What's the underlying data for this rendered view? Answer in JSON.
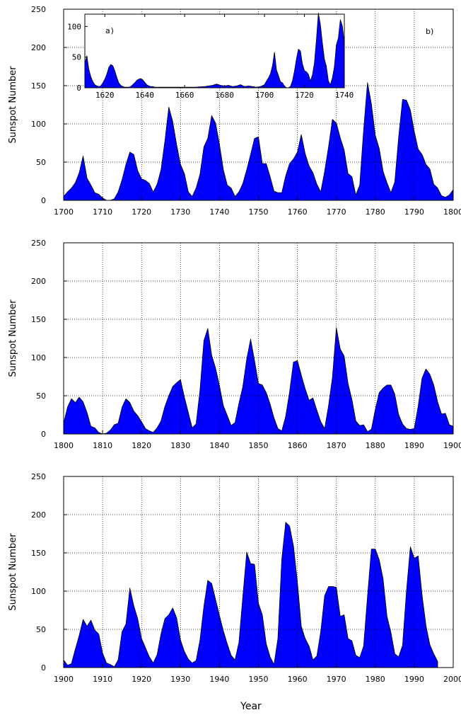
{
  "figure": {
    "xlabel": "Year"
  },
  "chart_data": [
    {
      "type": "area",
      "panel_label": "b)",
      "ylabel": "Sunspot Number",
      "xlim": [
        1700,
        1800
      ],
      "ylim": [
        0,
        250
      ],
      "xticks": [
        1700,
        1710,
        1720,
        1730,
        1740,
        1750,
        1760,
        1770,
        1780,
        1790,
        1800
      ],
      "xtick_labels": [
        "1700",
        "1710",
        "1720",
        "1730",
        "1740",
        "1750",
        "1760",
        "1770",
        "1780",
        "1790",
        "1800"
      ],
      "yticks": [
        0,
        50,
        100,
        150,
        200,
        250
      ],
      "grid": true,
      "fill_color": "#0000ff",
      "x": [
        1700,
        1701,
        1702,
        1703,
        1704,
        1705,
        1706,
        1707,
        1708,
        1709,
        1710,
        1711,
        1712,
        1713,
        1714,
        1715,
        1716,
        1717,
        1718,
        1719,
        1720,
        1721,
        1722,
        1723,
        1724,
        1725,
        1726,
        1727,
        1728,
        1729,
        1730,
        1731,
        1732,
        1733,
        1734,
        1735,
        1736,
        1737,
        1738,
        1739,
        1740,
        1741,
        1742,
        1743,
        1744,
        1745,
        1746,
        1747,
        1748,
        1749,
        1750,
        1751,
        1752,
        1753,
        1754,
        1755,
        1756,
        1757,
        1758,
        1759,
        1760,
        1761,
        1762,
        1763,
        1764,
        1765,
        1766,
        1767,
        1768,
        1769,
        1770,
        1771,
        1772,
        1773,
        1774,
        1775,
        1776,
        1777,
        1778,
        1779,
        1780,
        1781,
        1782,
        1783,
        1784,
        1785,
        1786,
        1787,
        1788,
        1789,
        1790,
        1791,
        1792,
        1793,
        1794,
        1795,
        1796,
        1797,
        1798,
        1799,
        1800
      ],
      "y": [
        5,
        11,
        16,
        23,
        36,
        58,
        29,
        20,
        10,
        8,
        3,
        0,
        0,
        2,
        11,
        27,
        47,
        63,
        60,
        39,
        28,
        26,
        22,
        11,
        21,
        40,
        78,
        122,
        103,
        73,
        47,
        35,
        11,
        5,
        16,
        34,
        70,
        81,
        111,
        101,
        73,
        40,
        20,
        16,
        5,
        11,
        22,
        40,
        60,
        81,
        83,
        48,
        48,
        31,
        12,
        10,
        10,
        32,
        48,
        54,
        63,
        86,
        61,
        45,
        36,
        21,
        11,
        38,
        70,
        106,
        101,
        82,
        66,
        35,
        31,
        7,
        20,
        92,
        154,
        126,
        85,
        68,
        38,
        23,
        10,
        24,
        83,
        132,
        131,
        118,
        90,
        67,
        60,
        47,
        41,
        21,
        16,
        6,
        4,
        7,
        14
      ]
    },
    {
      "type": "area",
      "panel_label": "a)",
      "inset": true,
      "xlim": [
        1610,
        1740
      ],
      "ylim": [
        0,
        120
      ],
      "xticks": [
        1620,
        1640,
        1660,
        1680,
        1700,
        1720,
        1740
      ],
      "xtick_labels": [
        "1620",
        "1640",
        "1660",
        "1680",
        "1700",
        "1720",
        "1740"
      ],
      "yticks": [
        0,
        50,
        100
      ],
      "fill_color": "#0000ff",
      "x": [
        1610,
        1611,
        1612,
        1613,
        1614,
        1615,
        1616,
        1617,
        1618,
        1619,
        1620,
        1621,
        1622,
        1623,
        1624,
        1625,
        1626,
        1627,
        1628,
        1629,
        1630,
        1631,
        1632,
        1633,
        1634,
        1635,
        1636,
        1637,
        1638,
        1639,
        1640,
        1641,
        1642,
        1643,
        1644,
        1645,
        1646,
        1647,
        1648,
        1649,
        1650,
        1655,
        1660,
        1665,
        1670,
        1672,
        1674,
        1676,
        1678,
        1680,
        1682,
        1684,
        1686,
        1688,
        1690,
        1692,
        1694,
        1696,
        1698,
        1700,
        1701,
        1702,
        1703,
        1704,
        1705,
        1706,
        1707,
        1708,
        1709,
        1710,
        1711,
        1712,
        1713,
        1714,
        1715,
        1716,
        1717,
        1718,
        1719,
        1720,
        1721,
        1722,
        1723,
        1724,
        1725,
        1726,
        1727,
        1728,
        1729,
        1730,
        1731,
        1732,
        1733,
        1734,
        1735,
        1736,
        1737,
        1738,
        1739,
        1740
      ],
      "y": [
        40,
        52,
        30,
        18,
        10,
        5,
        3,
        2,
        3,
        8,
        14,
        22,
        33,
        38,
        36,
        28,
        17,
        8,
        4,
        2,
        1,
        1,
        1,
        2,
        5,
        8,
        12,
        14,
        15,
        13,
        9,
        5,
        3,
        2,
        2,
        1,
        1,
        1,
        1,
        1,
        1,
        1,
        1,
        1,
        2,
        3,
        4,
        6,
        4,
        3,
        4,
        2,
        3,
        5,
        2,
        3,
        2,
        1,
        2,
        5,
        11,
        16,
        23,
        36,
        58,
        29,
        20,
        10,
        8,
        3,
        0,
        0,
        2,
        11,
        27,
        47,
        63,
        60,
        39,
        28,
        26,
        22,
        11,
        21,
        40,
        78,
        122,
        103,
        73,
        47,
        35,
        11,
        5,
        16,
        34,
        70,
        81,
        111,
        101,
        73
      ]
    },
    {
      "type": "area",
      "ylabel": "Sunspot Number",
      "xlim": [
        1800,
        1900
      ],
      "ylim": [
        0,
        250
      ],
      "xticks": [
        1800,
        1810,
        1820,
        1830,
        1840,
        1850,
        1860,
        1870,
        1880,
        1890,
        1900
      ],
      "xtick_labels": [
        "1800",
        "1810",
        "1820",
        "1830",
        "1840",
        "1850",
        "1860",
        "1870",
        "1880",
        "1890",
        "1900"
      ],
      "yticks": [
        0,
        50,
        100,
        150,
        200,
        250
      ],
      "grid": true,
      "fill_color": "#0000ff",
      "x": [
        1800,
        1801,
        1802,
        1803,
        1804,
        1805,
        1806,
        1807,
        1808,
        1809,
        1810,
        1811,
        1812,
        1813,
        1814,
        1815,
        1816,
        1817,
        1818,
        1819,
        1820,
        1821,
        1822,
        1823,
        1824,
        1825,
        1826,
        1827,
        1828,
        1829,
        1830,
        1831,
        1832,
        1833,
        1834,
        1835,
        1836,
        1837,
        1838,
        1839,
        1840,
        1841,
        1842,
        1843,
        1844,
        1845,
        1846,
        1847,
        1848,
        1849,
        1850,
        1851,
        1852,
        1853,
        1854,
        1855,
        1856,
        1857,
        1858,
        1859,
        1860,
        1861,
        1862,
        1863,
        1864,
        1865,
        1866,
        1867,
        1868,
        1869,
        1870,
        1871,
        1872,
        1873,
        1874,
        1875,
        1876,
        1877,
        1878,
        1879,
        1880,
        1881,
        1882,
        1883,
        1884,
        1885,
        1886,
        1887,
        1888,
        1889,
        1890,
        1891,
        1892,
        1893,
        1894,
        1895,
        1896,
        1897,
        1898,
        1899,
        1900
      ],
      "y": [
        14,
        35,
        46,
        41,
        48,
        42,
        28,
        10,
        8,
        2,
        0,
        1,
        5,
        12,
        14,
        35,
        46,
        41,
        30,
        24,
        16,
        7,
        4,
        2,
        8,
        17,
        36,
        50,
        62,
        67,
        71,
        48,
        28,
        8,
        13,
        57,
        122,
        138,
        103,
        86,
        63,
        37,
        24,
        11,
        15,
        40,
        62,
        98,
        124,
        96,
        66,
        64,
        54,
        39,
        21,
        7,
        4,
        23,
        55,
        94,
        96,
        77,
        59,
        44,
        47,
        31,
        16,
        7,
        37,
        74,
        139,
        111,
        102,
        66,
        45,
        17,
        11,
        12,
        3,
        6,
        32,
        54,
        60,
        64,
        64,
        52,
        25,
        13,
        7,
        6,
        7,
        36,
        73,
        85,
        78,
        64,
        42,
        26,
        27,
        12,
        10
      ]
    },
    {
      "type": "area",
      "ylabel": "Sunspot Number",
      "xlim": [
        1900,
        2000
      ],
      "ylim": [
        0,
        250
      ],
      "xticks": [
        1900,
        1910,
        1920,
        1930,
        1940,
        1950,
        1960,
        1970,
        1980,
        1990,
        2000
      ],
      "xtick_labels": [
        "1900",
        "1910",
        "1920",
        "1930",
        "1940",
        "1950",
        "1960",
        "1970",
        "1980",
        "1990",
        "2000"
      ],
      "yticks": [
        0,
        50,
        100,
        150,
        200,
        250
      ],
      "grid": true,
      "fill_color": "#0000ff",
      "x": [
        1900,
        1901,
        1902,
        1903,
        1904,
        1905,
        1906,
        1907,
        1908,
        1909,
        1910,
        1911,
        1912,
        1913,
        1914,
        1915,
        1916,
        1917,
        1918,
        1919,
        1920,
        1921,
        1922,
        1923,
        1924,
        1925,
        1926,
        1927,
        1928,
        1929,
        1930,
        1931,
        1932,
        1933,
        1934,
        1935,
        1936,
        1937,
        1938,
        1939,
        1940,
        1941,
        1942,
        1943,
        1944,
        1945,
        1946,
        1947,
        1948,
        1949,
        1950,
        1951,
        1952,
        1953,
        1954,
        1955,
        1956,
        1957,
        1958,
        1959,
        1960,
        1961,
        1962,
        1963,
        1964,
        1965,
        1966,
        1967,
        1968,
        1969,
        1970,
        1971,
        1972,
        1973,
        1974,
        1975,
        1976,
        1977,
        1978,
        1979,
        1980,
        1981,
        1982,
        1983,
        1984,
        1985,
        1986,
        1987,
        1988,
        1989,
        1990,
        1991,
        1992,
        1993,
        1994,
        1995,
        1996
      ],
      "y": [
        10,
        3,
        5,
        24,
        42,
        63,
        54,
        62,
        49,
        44,
        19,
        6,
        4,
        1,
        10,
        47,
        57,
        104,
        81,
        64,
        38,
        26,
        14,
        6,
        17,
        44,
        64,
        69,
        78,
        65,
        36,
        21,
        11,
        6,
        9,
        36,
        80,
        114,
        110,
        89,
        68,
        48,
        31,
        16,
        10,
        33,
        93,
        151,
        136,
        135,
        84,
        69,
        31,
        14,
        4,
        38,
        142,
        190,
        185,
        159,
        112,
        54,
        38,
        28,
        10,
        15,
        47,
        94,
        106,
        106,
        105,
        67,
        69,
        38,
        35,
        16,
        13,
        28,
        93,
        155,
        155,
        141,
        116,
        67,
        46,
        18,
        14,
        29,
        100,
        158,
        143,
        146,
        95,
        55,
        30,
        18,
        8
      ]
    }
  ]
}
